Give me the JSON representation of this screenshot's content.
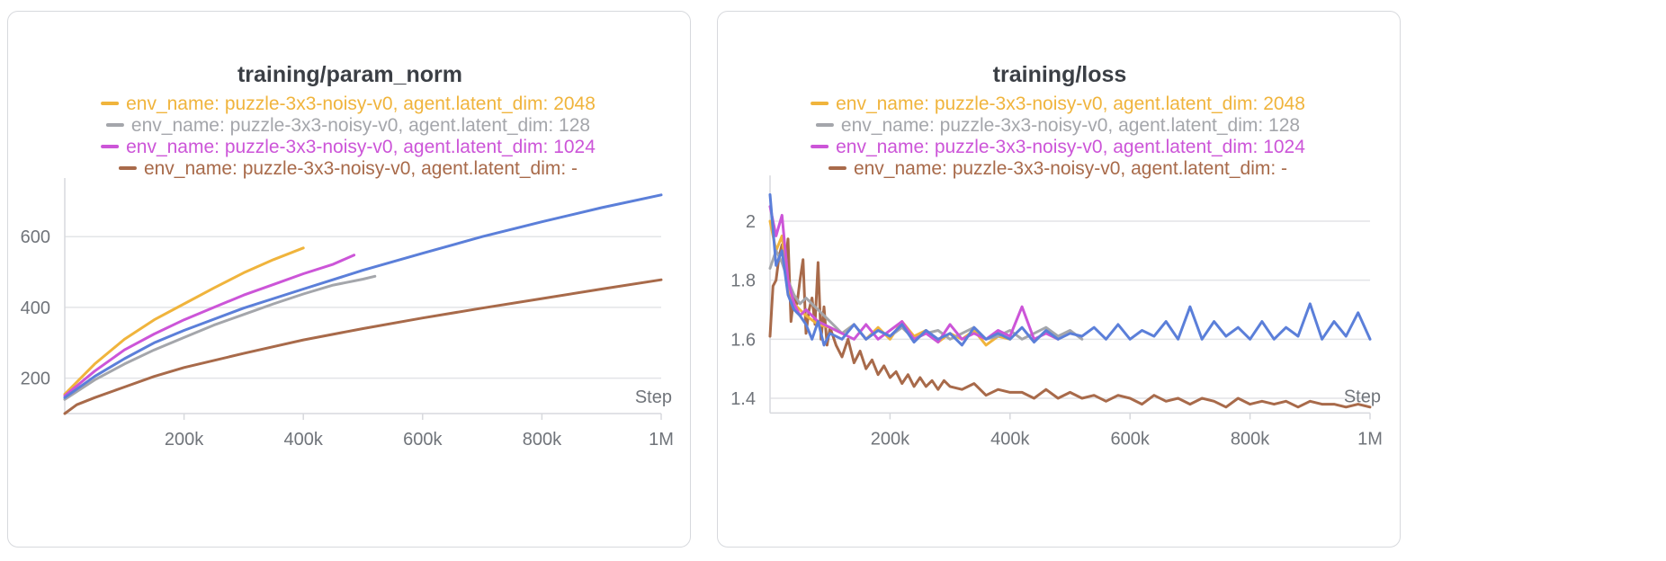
{
  "chart_data": [
    {
      "type": "line",
      "title": "training/param_norm",
      "xlabel": "Step",
      "ylabel": "",
      "xlim": [
        0,
        1000000
      ],
      "ylim": [
        100,
        720
      ],
      "xticks": [
        {
          "v": 200000,
          "label": "200k"
        },
        {
          "v": 400000,
          "label": "400k"
        },
        {
          "v": 600000,
          "label": "600k"
        },
        {
          "v": 800000,
          "label": "800k"
        },
        {
          "v": 1000000,
          "label": "1M"
        }
      ],
      "yticks": [
        {
          "v": 200,
          "label": "200"
        },
        {
          "v": 400,
          "label": "400"
        },
        {
          "v": 600,
          "label": "600"
        }
      ],
      "legend": [
        {
          "name": "env_name: puzzle-3x3-noisy-v0, agent.latent_dim: 2048",
          "color": "#f0b43c"
        },
        {
          "name": "env_name: puzzle-3x3-noisy-v0, agent.latent_dim: 128",
          "color": "#a4a6ab"
        },
        {
          "name": "env_name: puzzle-3x3-noisy-v0, agent.latent_dim: 1024",
          "color": "#cc55d8"
        },
        {
          "name": "env_name: puzzle-3x3-noisy-v0, agent.latent_dim: -",
          "color": "#a86a4a"
        }
      ],
      "series": [
        {
          "color": "#f0b43c",
          "x": [
            0,
            50000,
            100000,
            150000,
            200000,
            250000,
            300000,
            350000,
            400000
          ],
          "y": [
            155,
            240,
            310,
            365,
            410,
            455,
            498,
            535,
            568
          ]
        },
        {
          "color": "#cc55d8",
          "x": [
            0,
            50000,
            100000,
            150000,
            200000,
            250000,
            300000,
            350000,
            400000,
            450000,
            485000
          ],
          "y": [
            150,
            220,
            280,
            325,
            365,
            400,
            435,
            465,
            495,
            522,
            548
          ]
        },
        {
          "color": "#a4a6ab",
          "x": [
            0,
            50000,
            100000,
            150000,
            200000,
            250000,
            300000,
            350000,
            400000,
            450000,
            500000,
            520000
          ],
          "y": [
            140,
            195,
            240,
            280,
            315,
            350,
            380,
            410,
            438,
            463,
            480,
            488
          ]
        },
        {
          "color": "#5b7fd9",
          "x": [
            0,
            50000,
            100000,
            150000,
            200000,
            300000,
            400000,
            500000,
            600000,
            700000,
            800000,
            900000,
            1000000
          ],
          "y": [
            145,
            205,
            255,
            300,
            335,
            398,
            452,
            505,
            553,
            600,
            642,
            682,
            718
          ]
        },
        {
          "color": "#a86a4a",
          "x": [
            0,
            20000,
            50000,
            100000,
            150000,
            200000,
            300000,
            400000,
            500000,
            600000,
            700000,
            800000,
            900000,
            1000000
          ],
          "y": [
            100,
            125,
            145,
            175,
            205,
            230,
            270,
            308,
            340,
            370,
            398,
            425,
            452,
            478
          ]
        }
      ]
    },
    {
      "type": "line",
      "title": "training/loss",
      "xlabel": "Step",
      "ylabel": "",
      "xlim": [
        0,
        1000000
      ],
      "ylim": [
        1.35,
        2.1
      ],
      "xticks": [
        {
          "v": 200000,
          "label": "200k"
        },
        {
          "v": 400000,
          "label": "400k"
        },
        {
          "v": 600000,
          "label": "600k"
        },
        {
          "v": 800000,
          "label": "800k"
        },
        {
          "v": 1000000,
          "label": "1M"
        }
      ],
      "yticks": [
        {
          "v": 1.4,
          "label": "1.4"
        },
        {
          "v": 1.6,
          "label": "1.6"
        },
        {
          "v": 1.8,
          "label": "1.8"
        },
        {
          "v": 2.0,
          "label": "2"
        }
      ],
      "legend": [
        {
          "name": "env_name: puzzle-3x3-noisy-v0, agent.latent_dim: 2048",
          "color": "#f0b43c"
        },
        {
          "name": "env_name: puzzle-3x3-noisy-v0, agent.latent_dim: 128",
          "color": "#a4a6ab"
        },
        {
          "name": "env_name: puzzle-3x3-noisy-v0, agent.latent_dim: 1024",
          "color": "#cc55d8"
        },
        {
          "name": "env_name: puzzle-3x3-noisy-v0, agent.latent_dim: -",
          "color": "#a86a4a"
        }
      ],
      "series": [
        {
          "color": "#a86a4a",
          "x": [
            0,
            5000,
            10000,
            15000,
            20000,
            25000,
            30000,
            35000,
            40000,
            45000,
            50000,
            55000,
            60000,
            65000,
            70000,
            75000,
            80000,
            85000,
            90000,
            95000,
            100000,
            110000,
            120000,
            130000,
            140000,
            150000,
            160000,
            170000,
            180000,
            190000,
            200000,
            210000,
            220000,
            230000,
            240000,
            250000,
            260000,
            270000,
            280000,
            290000,
            300000,
            320000,
            340000,
            360000,
            380000,
            400000,
            420000,
            440000,
            460000,
            480000,
            500000,
            520000,
            540000,
            560000,
            580000,
            600000,
            620000,
            640000,
            660000,
            680000,
            700000,
            720000,
            740000,
            760000,
            780000,
            800000,
            820000,
            840000,
            860000,
            880000,
            900000,
            920000,
            940000,
            960000,
            980000,
            1000000
          ],
          "y": [
            1.61,
            1.78,
            1.8,
            1.88,
            1.92,
            1.84,
            1.94,
            1.66,
            1.75,
            1.72,
            1.8,
            1.87,
            1.62,
            1.7,
            1.74,
            1.65,
            1.86,
            1.6,
            1.71,
            1.58,
            1.64,
            1.58,
            1.54,
            1.6,
            1.52,
            1.56,
            1.5,
            1.53,
            1.48,
            1.51,
            1.47,
            1.49,
            1.45,
            1.48,
            1.44,
            1.47,
            1.44,
            1.46,
            1.43,
            1.46,
            1.44,
            1.43,
            1.45,
            1.41,
            1.43,
            1.42,
            1.42,
            1.4,
            1.43,
            1.4,
            1.42,
            1.4,
            1.41,
            1.39,
            1.41,
            1.4,
            1.38,
            1.41,
            1.39,
            1.4,
            1.38,
            1.4,
            1.39,
            1.37,
            1.4,
            1.38,
            1.39,
            1.38,
            1.39,
            1.37,
            1.39,
            1.38,
            1.38,
            1.37,
            1.38,
            1.37
          ]
        },
        {
          "color": "#f0b43c",
          "x": [
            0,
            10000,
            20000,
            30000,
            40000,
            50000,
            60000,
            80000,
            100000,
            120000,
            140000,
            160000,
            180000,
            200000,
            220000,
            240000,
            260000,
            280000,
            300000,
            320000,
            340000,
            360000,
            380000,
            400000
          ],
          "y": [
            2.0,
            1.9,
            1.95,
            1.78,
            1.72,
            1.7,
            1.68,
            1.65,
            1.64,
            1.62,
            1.65,
            1.6,
            1.64,
            1.6,
            1.66,
            1.61,
            1.63,
            1.59,
            1.62,
            1.6,
            1.63,
            1.58,
            1.61,
            1.6
          ]
        },
        {
          "color": "#a4a6ab",
          "x": [
            0,
            10000,
            20000,
            30000,
            40000,
            50000,
            60000,
            80000,
            100000,
            120000,
            140000,
            160000,
            180000,
            200000,
            220000,
            240000,
            260000,
            280000,
            300000,
            320000,
            340000,
            360000,
            380000,
            400000,
            420000,
            440000,
            460000,
            480000,
            500000,
            520000
          ],
          "y": [
            1.84,
            1.9,
            1.86,
            1.8,
            1.75,
            1.72,
            1.74,
            1.7,
            1.66,
            1.62,
            1.65,
            1.6,
            1.63,
            1.61,
            1.64,
            1.6,
            1.62,
            1.63,
            1.6,
            1.62,
            1.64,
            1.6,
            1.61,
            1.63,
            1.6,
            1.62,
            1.64,
            1.61,
            1.63,
            1.6
          ]
        },
        {
          "color": "#cc55d8",
          "x": [
            0,
            10000,
            20000,
            30000,
            40000,
            50000,
            60000,
            80000,
            100000,
            120000,
            140000,
            160000,
            180000,
            200000,
            220000,
            240000,
            260000,
            280000,
            300000,
            320000,
            340000,
            360000,
            380000,
            400000,
            420000,
            440000,
            460000,
            480000
          ],
          "y": [
            2.05,
            1.95,
            2.02,
            1.8,
            1.72,
            1.68,
            1.7,
            1.66,
            1.64,
            1.62,
            1.6,
            1.65,
            1.6,
            1.63,
            1.66,
            1.6,
            1.62,
            1.59,
            1.65,
            1.6,
            1.62,
            1.6,
            1.63,
            1.61,
            1.71,
            1.6,
            1.62,
            1.6
          ]
        },
        {
          "color": "#5b7fd9",
          "x": [
            0,
            10000,
            20000,
            30000,
            40000,
            50000,
            60000,
            70000,
            80000,
            90000,
            100000,
            120000,
            140000,
            160000,
            180000,
            200000,
            220000,
            240000,
            260000,
            280000,
            300000,
            320000,
            340000,
            360000,
            380000,
            400000,
            420000,
            440000,
            460000,
            480000,
            500000,
            520000,
            540000,
            560000,
            580000,
            600000,
            620000,
            640000,
            660000,
            680000,
            700000,
            720000,
            740000,
            760000,
            780000,
            800000,
            820000,
            840000,
            860000,
            880000,
            900000,
            920000,
            940000,
            960000,
            980000,
            1000000
          ],
          "y": [
            2.09,
            1.85,
            1.9,
            1.75,
            1.7,
            1.68,
            1.65,
            1.6,
            1.66,
            1.58,
            1.62,
            1.6,
            1.65,
            1.6,
            1.63,
            1.61,
            1.65,
            1.59,
            1.63,
            1.6,
            1.62,
            1.58,
            1.64,
            1.6,
            1.62,
            1.6,
            1.64,
            1.59,
            1.63,
            1.6,
            1.62,
            1.61,
            1.64,
            1.6,
            1.65,
            1.6,
            1.63,
            1.61,
            1.66,
            1.6,
            1.71,
            1.6,
            1.66,
            1.61,
            1.64,
            1.6,
            1.66,
            1.6,
            1.64,
            1.61,
            1.72,
            1.6,
            1.66,
            1.61,
            1.69,
            1.6
          ]
        }
      ]
    }
  ]
}
